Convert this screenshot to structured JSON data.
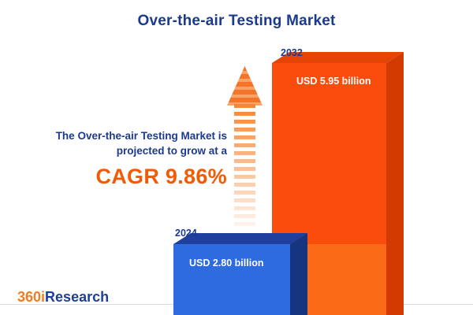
{
  "title": "Over-the-air Testing Market",
  "description": {
    "line1": "The Over-the-air Testing Market is",
    "line2": "projected to grow at a",
    "cagr": "CAGR 9.86%"
  },
  "chart_data": {
    "type": "bar",
    "title": "Over-the-air Testing Market",
    "categories": [
      "2024",
      "2032"
    ],
    "values": [
      2.8,
      5.95
    ],
    "unit": "USD billion",
    "value_labels": [
      "USD 2.80 billion",
      "USD 5.95 billion"
    ],
    "cagr_percent": 9.86,
    "legend_position": "none",
    "grid": false,
    "bar_colors": {
      "2024": "#2e6be0",
      "2032": "#fa4c0c"
    }
  },
  "colors": {
    "navy": "#1b3a8f",
    "accent_orange": "#f25a05",
    "bar_blue": "#2e6be0",
    "bar_orange": "#fa4c0c"
  },
  "logo": {
    "part1": "360i",
    "part2": "Research"
  }
}
